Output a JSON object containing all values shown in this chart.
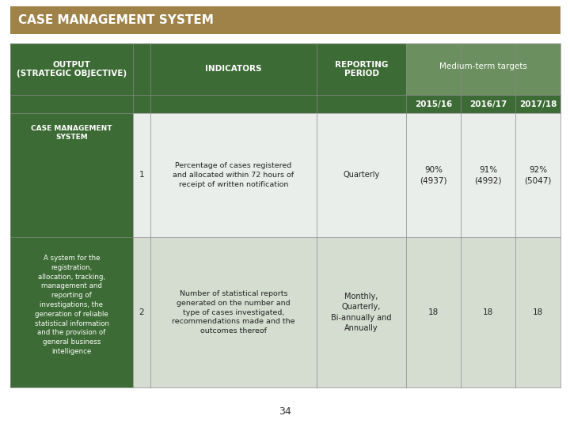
{
  "title": "CASE MANAGEMENT SYSTEM",
  "title_bg": "#9e8248",
  "title_color": "#ffffff",
  "header_bg_dark": "#3d6b35",
  "header_bg_light": "#6b8f5e",
  "row1_bg": "#eaeeea",
  "row2_bg": "#d5ddd0",
  "left_col_bg": "#3d6b35",
  "left_col_text": "#ffffff",
  "body_text_color": "#1a1a1a",
  "col_output_label": "OUTPUT\n(STRATEGIC OBJECTIVE)",
  "col_indicators_label": "INDICATORS",
  "col_reporting_label": "REPORTING\nPERIOD",
  "col_medium_term_label": "Medium-term targets",
  "subheaders": [
    "2015/16",
    "2016/17",
    "2017/18"
  ],
  "left_col_title": "CASE MANAGEMENT\nSYSTEM",
  "left_col_desc": "A system for the\nregistration,\nallocation, tracking,\nmanagement and\nreporting of\ninvestigations, the\ngeneration of reliable\nstatistical information\nand the provision of\ngeneral business\nintelligence",
  "row1_num": "1",
  "row1_indicator": "Percentage of cases registered\nand allocated within 72 hours of\nreceipt of written notification",
  "row1_period": "Quarterly",
  "row1_vals": [
    "90%\n(4937)",
    "91%\n(4992)",
    "92%\n(5047)"
  ],
  "row2_num": "2",
  "row2_indicator": "Number of statistical reports\ngenerated on the number and\ntype of cases investigated,\nrecommendations made and the\noutcomes thereof",
  "row2_period": "Monthly,\nQuarterly,\nBi-annually and\nAnnually",
  "row2_vals": [
    "18",
    "18",
    "18"
  ],
  "page_num": "34",
  "bg_color": "#ffffff"
}
